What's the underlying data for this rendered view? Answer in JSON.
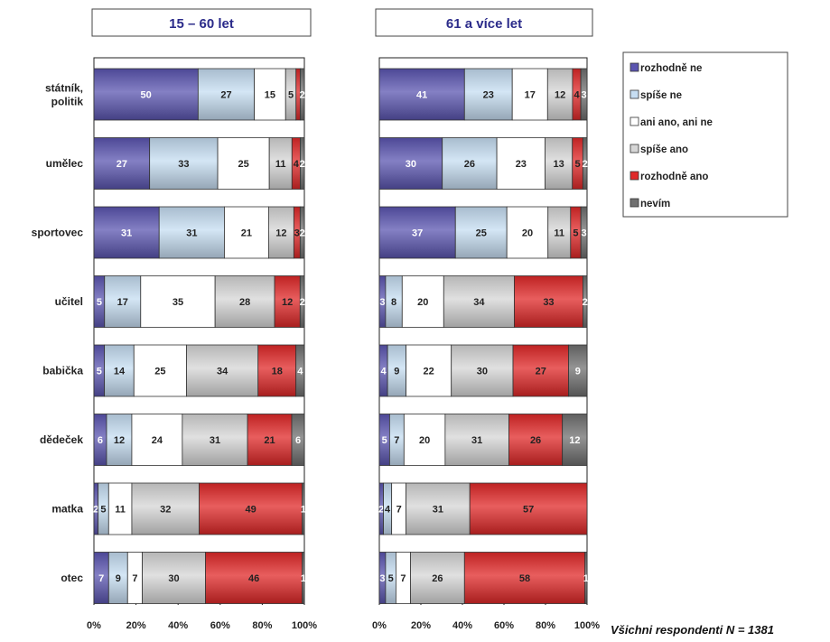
{
  "chart_data": {
    "type": "bar",
    "orientation": "horizontal",
    "stacked": "percent",
    "categories": [
      "státník, politik",
      "umělec",
      "sportovec",
      "učitel",
      "babička",
      "dědeček",
      "matka",
      "otec"
    ],
    "category_lines": [
      [
        "státník,",
        "politik"
      ],
      [
        "umělec"
      ],
      [
        "sportovec"
      ],
      [
        "učitel"
      ],
      [
        "babička"
      ],
      [
        "dědeček"
      ],
      [
        "matka"
      ],
      [
        "otec"
      ]
    ],
    "x_ticks": [
      "0%",
      "20%",
      "40%",
      "60%",
      "80%",
      "100%"
    ],
    "xlim": [
      0,
      100
    ],
    "legend_position": "top-right",
    "series_names": [
      "rozhodně ne",
      "spíše ne",
      "ani ano, ani ne",
      "spíše ano",
      "rozhodně ano",
      "nevím"
    ],
    "series_colors": [
      "#5b55b0",
      "#c6ddf2",
      "#ffffff",
      "#d6d6d6",
      "#e02828",
      "#707070"
    ],
    "panels": [
      {
        "title": "15 – 60 let",
        "values": [
          [
            50,
            27,
            15,
            5,
            2,
            2
          ],
          [
            27,
            33,
            25,
            11,
            4,
            2
          ],
          [
            31,
            31,
            21,
            12,
            3,
            2
          ],
          [
            5,
            17,
            35,
            28,
            12,
            2
          ],
          [
            5,
            14,
            25,
            34,
            18,
            4
          ],
          [
            6,
            12,
            24,
            31,
            21,
            6
          ],
          [
            2,
            5,
            11,
            32,
            49,
            1
          ],
          [
            7,
            9,
            7,
            30,
            46,
            1
          ]
        ],
        "labels": [
          [
            "50",
            "27",
            "15",
            "5",
            "",
            "2"
          ],
          [
            "27",
            "33",
            "25",
            "11",
            "4",
            "2"
          ],
          [
            "31",
            "31",
            "21",
            "12",
            "3",
            "2"
          ],
          [
            "5",
            "17",
            "35",
            "28",
            "12",
            "2"
          ],
          [
            "5",
            "14",
            "25",
            "34",
            "18",
            "4"
          ],
          [
            "6",
            "12",
            "24",
            "31",
            "21",
            "6"
          ],
          [
            "2",
            "5",
            "11",
            "32",
            "49",
            "1"
          ],
          [
            "7",
            "9",
            "7",
            "30",
            "46",
            "1"
          ]
        ]
      },
      {
        "title": "61 a více let",
        "values": [
          [
            41,
            23,
            17,
            12,
            4,
            3
          ],
          [
            30,
            26,
            23,
            13,
            5,
            2
          ],
          [
            37,
            25,
            20,
            11,
            5,
            3
          ],
          [
            3,
            8,
            20,
            34,
            33,
            2
          ],
          [
            4,
            9,
            22,
            30,
            27,
            9
          ],
          [
            5,
            7,
            20,
            31,
            26,
            12
          ],
          [
            2,
            4,
            7,
            31,
            57,
            0
          ],
          [
            3,
            5,
            7,
            26,
            58,
            1
          ]
        ],
        "labels": [
          [
            "41",
            "23",
            "17",
            "12",
            "4",
            "3"
          ],
          [
            "30",
            "26",
            "23",
            "13",
            "5",
            "2"
          ],
          [
            "37",
            "25",
            "20",
            "11",
            "5",
            "3"
          ],
          [
            "3",
            "8",
            "20",
            "34",
            "33",
            "2"
          ],
          [
            "4",
            "9",
            "22",
            "30",
            "27",
            "9"
          ],
          [
            "5",
            "7",
            "20",
            "31",
            "26",
            "12"
          ],
          [
            "2",
            "4",
            "7",
            "31",
            "57",
            "0"
          ],
          [
            "3",
            "5",
            "7",
            "26",
            "58",
            "1"
          ]
        ]
      }
    ]
  },
  "footnote": "Všichni respondenti N = 1381"
}
